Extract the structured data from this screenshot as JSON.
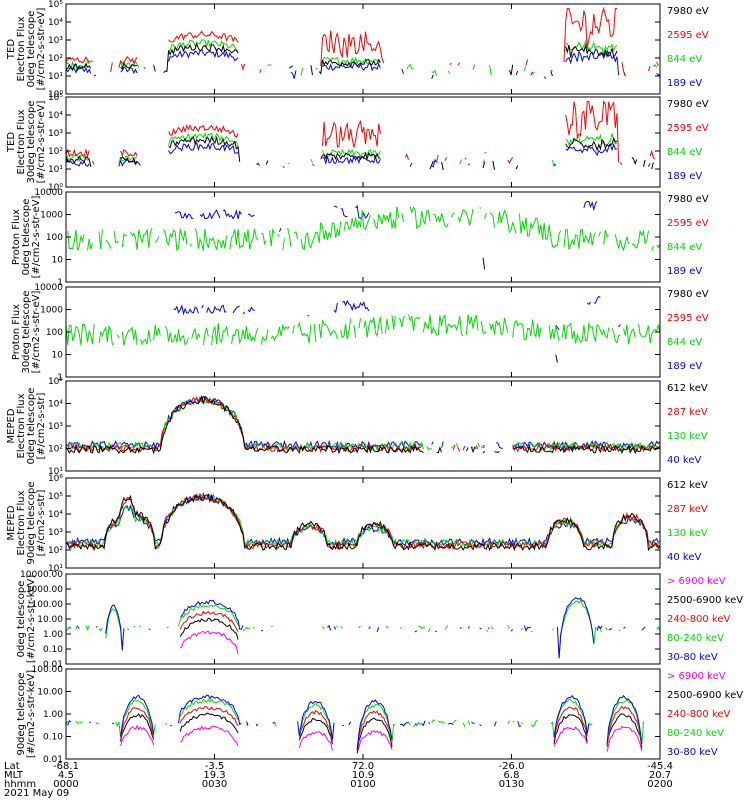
{
  "chart_data": {
    "type": "line",
    "y_scale": "log",
    "x_axis": {
      "row_labels": [
        "Lat",
        "MLT",
        "hhmm",
        "2021 May 09"
      ],
      "ticks": [
        {
          "time": "0000",
          "lat": "-68.1",
          "mlt": "4.5"
        },
        {
          "time": "0030",
          "lat": "-3.5",
          "mlt": "19.3"
        },
        {
          "time": "0100",
          "lat": "72.0",
          "mlt": "10.9"
        },
        {
          "time": "0130",
          "lat": "-26.0",
          "mlt": "6.8"
        },
        {
          "time": "0200",
          "lat": "-45.4",
          "mlt": "20.7"
        }
      ]
    },
    "panels": [
      {
        "ylabel": [
          "TED",
          "Electron Flux",
          "0deg telescope",
          "[#/cm2-s-str-eV]"
        ],
        "yticks": [
          "10⁰",
          "10¹",
          "10²",
          "10³",
          "10⁴",
          "10⁵"
        ],
        "ylim": [
          1,
          100000
        ],
        "legend": [
          {
            "label": "7980 eV",
            "color": "#000000"
          },
          {
            "label": "2595 eV",
            "color": "#ff0000"
          },
          {
            "label": "844 eV",
            "color": "#00dd00"
          },
          {
            "label": "189 eV",
            "color": "#0000ff"
          }
        ]
      },
      {
        "ylabel": [
          "TED",
          "Electron Flux",
          "30deg telescope",
          "[#/cm2-s-str-eV]"
        ],
        "yticks": [
          "10⁰",
          "10¹",
          "10²",
          "10³",
          "10⁴",
          "10⁵"
        ],
        "ylim": [
          1,
          100000
        ],
        "legend": [
          {
            "label": "7980 eV",
            "color": "#000000"
          },
          {
            "label": "2595 eV",
            "color": "#ff0000"
          },
          {
            "label": "844 eV",
            "color": "#00dd00"
          },
          {
            "label": "189 eV",
            "color": "#0000ff"
          }
        ]
      },
      {
        "ylabel": [
          "Proton Flux",
          "0deg telescope",
          "[#/cm2-s-str-eV]"
        ],
        "yticks": [
          "1",
          "10",
          "100",
          "1000",
          "10000"
        ],
        "ylim": [
          1,
          10000
        ],
        "legend": [
          {
            "label": "7980 eV",
            "color": "#000000"
          },
          {
            "label": "2595 eV",
            "color": "#ff0000"
          },
          {
            "label": "844 eV",
            "color": "#00dd00"
          },
          {
            "label": "189 eV",
            "color": "#0000ff"
          }
        ]
      },
      {
        "ylabel": [
          "Proton Flux",
          "30deg telescope",
          "[#/cm2-s-str-eV]"
        ],
        "yticks": [
          "1",
          "10",
          "100",
          "1000",
          "10000"
        ],
        "ylim": [
          1,
          10000
        ],
        "legend": [
          {
            "label": "7980 eV",
            "color": "#000000"
          },
          {
            "label": "2595 eV",
            "color": "#ff0000"
          },
          {
            "label": "844 eV",
            "color": "#00dd00"
          },
          {
            "label": "189 eV",
            "color": "#0000ff"
          }
        ]
      },
      {
        "ylabel": [
          "MEPED",
          "Electron Flux",
          "0deg telescope",
          "[#/cm2-s-str]"
        ],
        "yticks": [
          "10¹",
          "10²",
          "10³",
          "10⁴",
          "10⁵"
        ],
        "ylim": [
          10,
          100000
        ],
        "legend": [
          {
            "label": "612 keV",
            "color": "#000000"
          },
          {
            "label": "287 keV",
            "color": "#ff0000"
          },
          {
            "label": "130 keV",
            "color": "#00dd00"
          },
          {
            "label": "40 keV",
            "color": "#0000ff"
          }
        ]
      },
      {
        "ylabel": [
          "MEPED",
          "Electron Flux",
          "90deg telescope",
          "[#/cm2-s-str]"
        ],
        "yticks": [
          "10¹",
          "10²",
          "10³",
          "10⁴",
          "10⁵",
          "10⁶"
        ],
        "ylim": [
          10,
          1000000
        ],
        "legend": [
          {
            "label": "612 keV",
            "color": "#000000"
          },
          {
            "label": "287 keV",
            "color": "#ff0000"
          },
          {
            "label": "130 keV",
            "color": "#00dd00"
          },
          {
            "label": "40 keV",
            "color": "#0000ff"
          }
        ]
      },
      {
        "ylabel": [
          "0deg telescope",
          "[#/cm2-s-str-keV]"
        ],
        "yticks": [
          "0.01",
          "0.10",
          "1.00",
          "10.00",
          "100.00",
          "1000.00",
          "10000.00"
        ],
        "ylim": [
          0.01,
          10000
        ],
        "legend": [
          {
            "label": "> 6900 keV",
            "color": "#ff00ff"
          },
          {
            "label": "2500-6900 keV",
            "color": "#000000"
          },
          {
            "label": "240-800 keV",
            "color": "#ff0000"
          },
          {
            "label": "80-240 keV",
            "color": "#00dd00"
          },
          {
            "label": "30-80 keV",
            "color": "#0000ff"
          }
        ]
      },
      {
        "ylabel": [
          "90deg telescope",
          "[#/cm2-s-str-keV]"
        ],
        "yticks": [
          "0.01",
          "0.10",
          "1.00",
          "10.00",
          "100.00"
        ],
        "ylim": [
          0.01,
          500
        ],
        "legend": [
          {
            "label": "> 6900 keV",
            "color": "#ff00ff"
          },
          {
            "label": "2500-6900 keV",
            "color": "#000000"
          },
          {
            "label": "240-800 keV",
            "color": "#ff0000"
          },
          {
            "label": "80-240 keV",
            "color": "#00dd00"
          },
          {
            "label": "30-80 keV",
            "color": "#0000ff"
          }
        ]
      }
    ]
  }
}
